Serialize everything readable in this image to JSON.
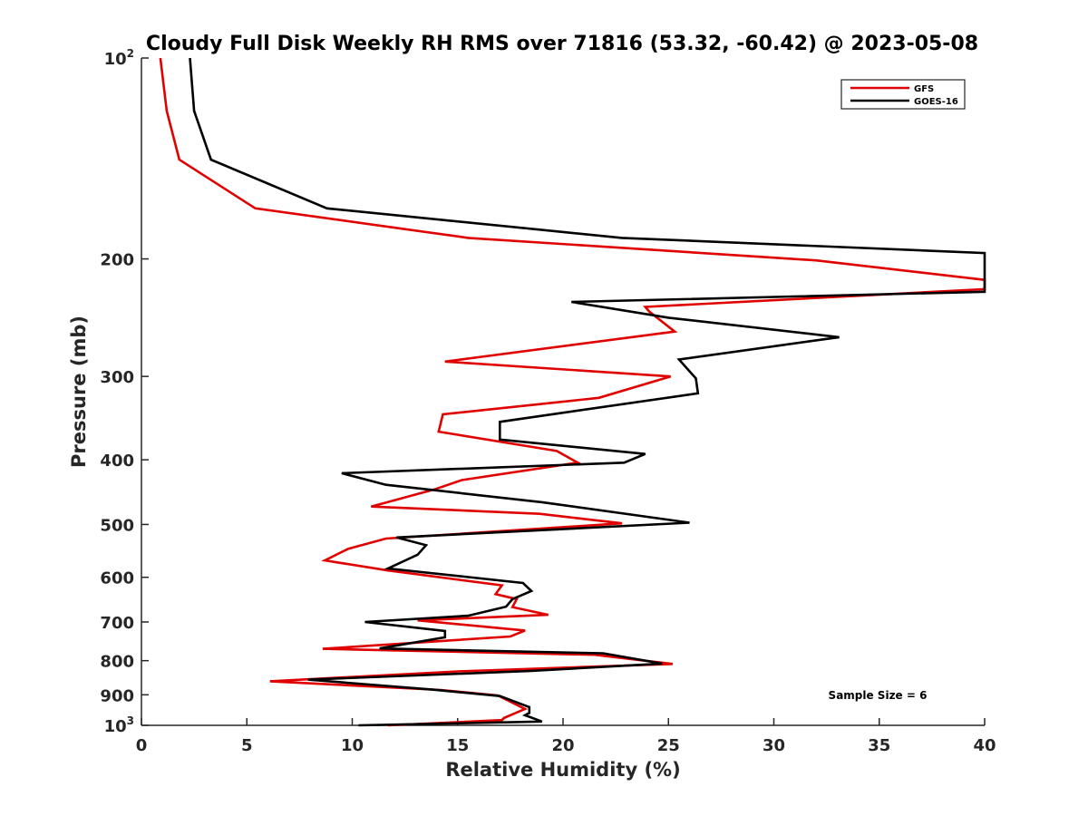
{
  "chart_data": {
    "type": "line",
    "title": "Cloudy Full Disk Weekly RH RMS over 71816 (53.32, -60.42) @ 2023-05-08",
    "xlabel": "Relative Humidity (%)",
    "ylabel": "Pressure (mb)",
    "xlim": [
      0,
      40
    ],
    "ylim": [
      100,
      1000
    ],
    "yscale": "log",
    "y_reversed": true,
    "grid": false,
    "legend_position": "top-right",
    "x_ticks": [
      {
        "value": 0,
        "label": "0"
      },
      {
        "value": 5,
        "label": "5"
      },
      {
        "value": 10,
        "label": "10"
      },
      {
        "value": 15,
        "label": "15"
      },
      {
        "value": 20,
        "label": "20"
      },
      {
        "value": 25,
        "label": "25"
      },
      {
        "value": 30,
        "label": "30"
      },
      {
        "value": 35,
        "label": "35"
      },
      {
        "value": 40,
        "label": "40"
      }
    ],
    "y_ticks": [
      {
        "value": 100,
        "base": "10",
        "exp": "2"
      },
      {
        "value": 200,
        "label": "200"
      },
      {
        "value": 300,
        "label": "300"
      },
      {
        "value": 400,
        "label": "400"
      },
      {
        "value": 500,
        "label": "500"
      },
      {
        "value": 600,
        "label": "600"
      },
      {
        "value": 700,
        "label": "700"
      },
      {
        "value": 800,
        "label": "800"
      },
      {
        "value": 900,
        "label": "900"
      },
      {
        "value": 1000,
        "base": "10",
        "exp": "3"
      }
    ],
    "series": [
      {
        "name": "GFS",
        "color": "#e00000",
        "points": [
          [
            0.9,
            100
          ],
          [
            1.2,
            120
          ],
          [
            1.8,
            142
          ],
          [
            5.4,
            168
          ],
          [
            15.5,
            186
          ],
          [
            32,
            201
          ],
          [
            40,
            215
          ],
          [
            40,
            222
          ],
          [
            23.9,
            236
          ],
          [
            24.1,
            240
          ],
          [
            25.3,
            257
          ],
          [
            14.4,
            285
          ],
          [
            25.1,
            300
          ],
          [
            21.7,
            323
          ],
          [
            14.3,
            342
          ],
          [
            14.1,
            363
          ],
          [
            19.7,
            388
          ],
          [
            20.7,
            404
          ],
          [
            15.2,
            429
          ],
          [
            13.9,
            443
          ],
          [
            10.9,
            470
          ],
          [
            18.9,
            482
          ],
          [
            22.8,
            498
          ],
          [
            11.6,
            525
          ],
          [
            9.8,
            544
          ],
          [
            8.7,
            566
          ],
          [
            11.7,
            586
          ],
          [
            17.1,
            617
          ],
          [
            16.8,
            636
          ],
          [
            17.8,
            647
          ],
          [
            17.6,
            665
          ],
          [
            19.3,
            683
          ],
          [
            13.1,
            696
          ],
          [
            18.2,
            721
          ],
          [
            17.5,
            736
          ],
          [
            8.6,
            768
          ],
          [
            21.5,
            784
          ],
          [
            25.2,
            809
          ],
          [
            15.1,
            830
          ],
          [
            6.1,
            859
          ],
          [
            14.2,
            885
          ],
          [
            16.9,
            902
          ],
          [
            18.2,
            945
          ],
          [
            17.2,
            975
          ],
          [
            17.1,
            982
          ],
          [
            11.7,
            1000
          ]
        ]
      },
      {
        "name": "GOES-16",
        "color": "#000000",
        "points": [
          [
            2.3,
            100
          ],
          [
            2.5,
            120
          ],
          [
            3.3,
            142
          ],
          [
            8.8,
            168
          ],
          [
            22.8,
            186
          ],
          [
            40,
            196
          ],
          [
            40,
            224
          ],
          [
            20.4,
            232
          ],
          [
            25,
            245
          ],
          [
            33.1,
            262
          ],
          [
            25.5,
            283
          ],
          [
            26.3,
            302
          ],
          [
            26.4,
            318
          ],
          [
            17,
            351
          ],
          [
            17,
            373
          ],
          [
            23.9,
            392
          ],
          [
            22.9,
            404
          ],
          [
            9.5,
            419
          ],
          [
            11.6,
            436
          ],
          [
            19,
            463
          ],
          [
            26,
            497
          ],
          [
            12.1,
            523
          ],
          [
            13.5,
            537
          ],
          [
            13.1,
            555
          ],
          [
            11.7,
            582
          ],
          [
            18.1,
            612
          ],
          [
            18.5,
            629
          ],
          [
            17.6,
            647
          ],
          [
            17.3,
            664
          ],
          [
            15.5,
            685
          ],
          [
            10.6,
            700
          ],
          [
            14.4,
            722
          ],
          [
            14.4,
            738
          ],
          [
            11.3,
            767
          ],
          [
            21.9,
            780
          ],
          [
            24.7,
            808
          ],
          [
            18.4,
            829
          ],
          [
            7.9,
            854
          ],
          [
            13.8,
            884
          ],
          [
            17,
            904
          ],
          [
            18.4,
            939
          ],
          [
            18.4,
            958
          ],
          [
            18.2,
            966
          ],
          [
            19,
            987
          ],
          [
            10.3,
            1000
          ]
        ]
      }
    ],
    "annotations": [
      "Sample Size = 6"
    ]
  }
}
